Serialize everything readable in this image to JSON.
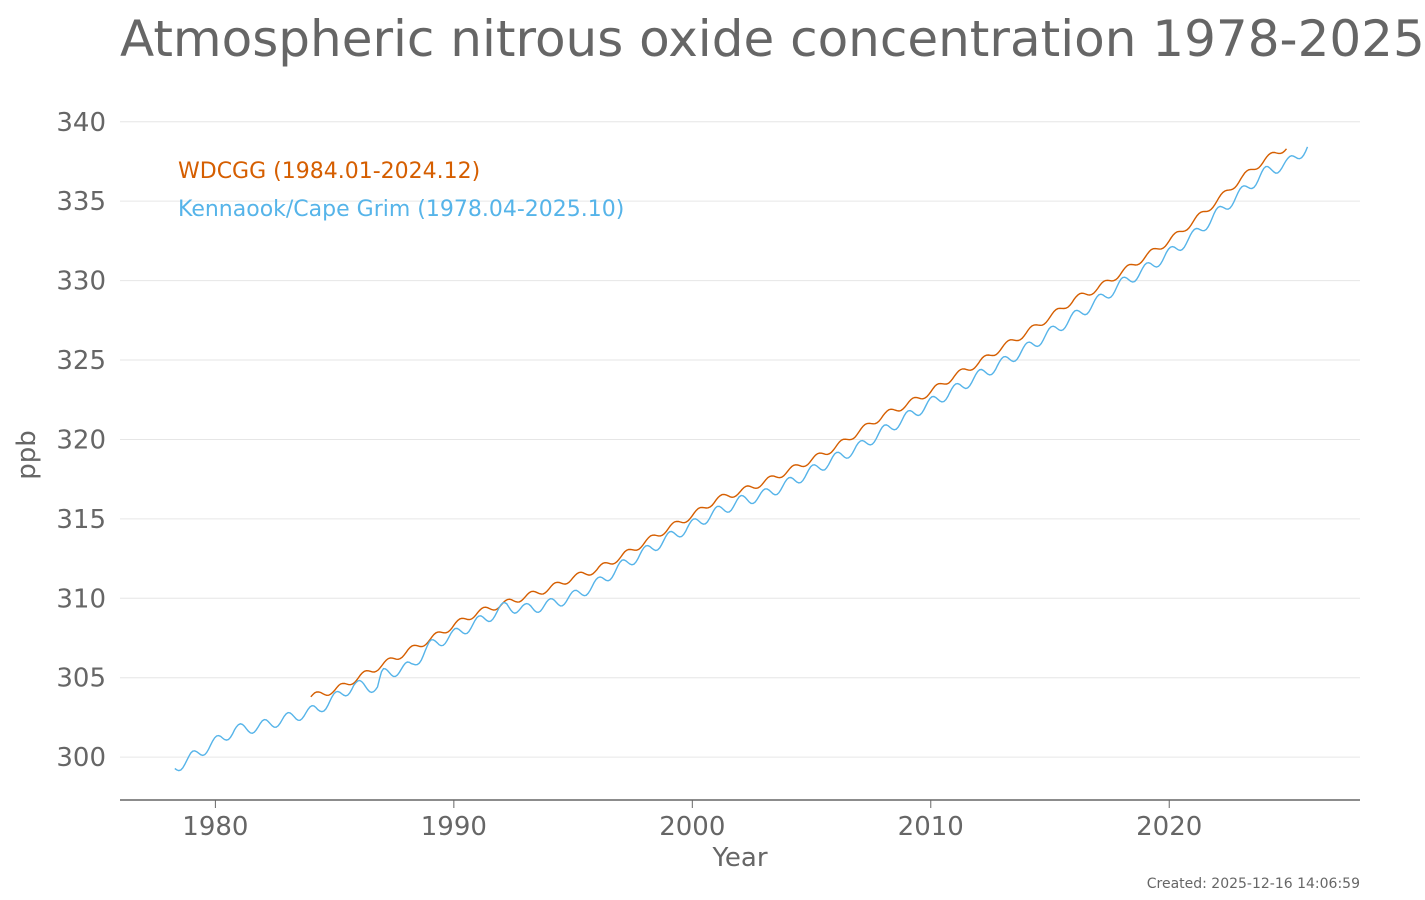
{
  "chart_data": {
    "type": "line",
    "title": "Atmospheric nitrous oxide concentration 1978-2025",
    "xlabel": "Year",
    "ylabel": "ppb",
    "xlim": [
      1976,
      2028
    ],
    "ylim": [
      297.3,
      342
    ],
    "x_ticks": [
      1980,
      1990,
      2000,
      2010,
      2020
    ],
    "y_ticks": [
      300,
      305,
      310,
      315,
      320,
      325,
      330,
      335,
      340
    ],
    "grid": "horizontal",
    "legend_position": "top-left",
    "series": [
      {
        "name": "WDCGG (1984.01-2024.12)",
        "color": "#d55e00",
        "seasonal_amplitude": 0.2,
        "x": [
          1984.0,
          1985.0,
          1986.0,
          1987.0,
          1988.0,
          1989.0,
          1990.0,
          1991.0,
          1992.0,
          1993.0,
          1994.0,
          1995.0,
          1996.0,
          1997.0,
          1998.0,
          1999.0,
          2000.0,
          2001.0,
          2002.0,
          2003.0,
          2004.0,
          2005.0,
          2006.0,
          2007.0,
          2008.0,
          2009.0,
          2010.0,
          2011.0,
          2012.0,
          2013.0,
          2014.0,
          2015.0,
          2016.0,
          2017.0,
          2018.0,
          2019.0,
          2020.0,
          2021.0,
          2022.0,
          2023.0,
          2024.0,
          2024.92
        ],
        "y": [
          303.8,
          304.2,
          305.0,
          305.8,
          306.6,
          307.4,
          308.3,
          309.1,
          309.6,
          310.1,
          310.6,
          311.3,
          311.8,
          312.6,
          313.5,
          314.4,
          315.2,
          316.2,
          316.7,
          317.3,
          318.0,
          318.7,
          319.5,
          320.5,
          321.5,
          322.2,
          323.0,
          324.0,
          324.8,
          325.8,
          326.7,
          327.7,
          328.8,
          329.5,
          330.5,
          331.5,
          332.5,
          333.7,
          335.0,
          336.4,
          337.6,
          338.4
        ]
      },
      {
        "name": "Kennaook/Cape Grim (1978.04-2025.10)",
        "color": "#56b4e9",
        "seasonal_amplitude": 0.35,
        "x": [
          1978.3,
          1980.8,
          1981.8,
          1984.3,
          1985.8,
          1986.8,
          1987.0,
          1988.2,
          1989.0,
          1990.0,
          1991.0,
          1991.8,
          1992.2,
          1993.0,
          1994.0,
          1995.0,
          1996.0,
          1997.0,
          1998.0,
          1999.0,
          2000.0,
          2001.0,
          2002.0,
          2003.0,
          2004.0,
          2005.0,
          2006.0,
          2007.0,
          2008.0,
          2009.0,
          2010.0,
          2011.0,
          2012.0,
          2013.0,
          2014.0,
          2015.0,
          2016.0,
          2017.0,
          2018.0,
          2019.0,
          2020.0,
          2021.0,
          2022.0,
          2023.0,
          2024.0,
          2025.0,
          2025.8
        ],
        "y": [
          299.3,
          301.7,
          301.9,
          303.0,
          304.5,
          304.4,
          305.2,
          305.7,
          307.0,
          307.7,
          308.5,
          309.1,
          309.5,
          309.3,
          309.6,
          310.1,
          310.9,
          312.0,
          312.9,
          313.8,
          314.6,
          315.4,
          316.1,
          316.5,
          317.2,
          318.0,
          318.8,
          319.5,
          320.5,
          321.4,
          322.3,
          323.1,
          324.0,
          324.8,
          325.7,
          326.7,
          327.7,
          328.7,
          329.8,
          330.7,
          331.7,
          332.8,
          334.2,
          335.5,
          336.8,
          337.4,
          338.4
        ]
      }
    ]
  },
  "footer": {
    "created": "Created: 2025-12-16 14:06:59"
  }
}
